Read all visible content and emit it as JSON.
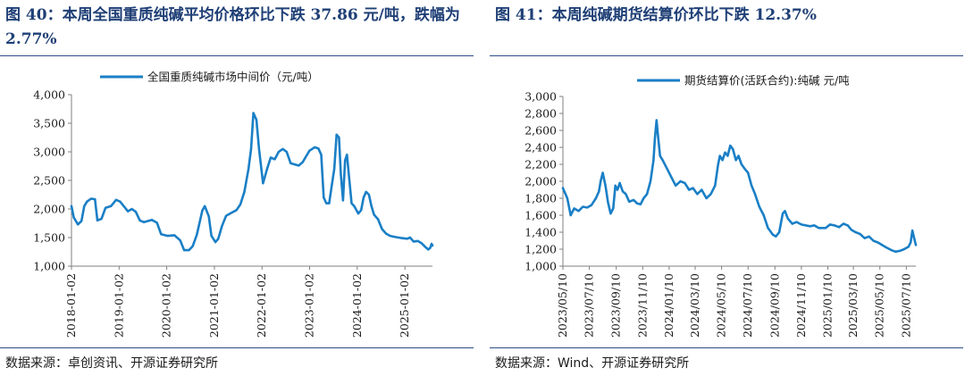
{
  "colors": {
    "series": "#1a7fc6",
    "title": "#1f3f76",
    "axis": "#7f7f7f",
    "rule": "#2b4f86"
  },
  "panels": [
    {
      "title": "图 40：本周全国重质纯碱平均价格环比下跌 37.86 元/吨，跌幅为 2.77%",
      "source": "数据来源：卓创资讯、开源证券研究所"
    },
    {
      "title": "图 41：本周纯碱期货结算价环比下跌 12.37%",
      "source": "数据来源：Wind、开源证券研究所"
    }
  ],
  "chart_data": [
    {
      "type": "line",
      "title": "",
      "xlabel": "",
      "ylabel": "",
      "legend_position": "top-center",
      "grid": false,
      "ylim": [
        1000,
        4000
      ],
      "yticks": [
        "1,000",
        "1,500",
        "2,000",
        "2,500",
        "3,000",
        "3,500",
        "4,000"
      ],
      "xlim": [
        "2018-01-02",
        "2025-08-01"
      ],
      "xticks": [
        "2018-01-02",
        "2019-01-02",
        "2020-01-02",
        "2021-01-02",
        "2022-01-02",
        "2023-01-02",
        "2024-01-02",
        "2025-01-02"
      ],
      "series": [
        {
          "name": "全国重质纯碱市场中间价（元/吨）",
          "points": [
            [
              "2018-01-02",
              2050
            ],
            [
              "2018-01-20",
              1850
            ],
            [
              "2018-02-20",
              1730
            ],
            [
              "2018-03-20",
              1790
            ],
            [
              "2018-04-10",
              2050
            ],
            [
              "2018-05-01",
              2130
            ],
            [
              "2018-06-01",
              2180
            ],
            [
              "2018-07-01",
              2170
            ],
            [
              "2018-07-20",
              1800
            ],
            [
              "2018-08-20",
              1830
            ],
            [
              "2018-09-20",
              2020
            ],
            [
              "2018-11-01",
              2050
            ],
            [
              "2018-12-10",
              2160
            ],
            [
              "2019-01-10",
              2130
            ],
            [
              "2019-02-10",
              2040
            ],
            [
              "2019-03-10",
              1960
            ],
            [
              "2019-04-10",
              2000
            ],
            [
              "2019-05-10",
              1950
            ],
            [
              "2019-06-10",
              1800
            ],
            [
              "2019-07-10",
              1770
            ],
            [
              "2019-09-10",
              1810
            ],
            [
              "2019-10-20",
              1760
            ],
            [
              "2019-11-20",
              1560
            ],
            [
              "2020-01-10",
              1530
            ],
            [
              "2020-03-01",
              1540
            ],
            [
              "2020-04-15",
              1450
            ],
            [
              "2020-05-15",
              1280
            ],
            [
              "2020-06-20",
              1280
            ],
            [
              "2020-07-20",
              1350
            ],
            [
              "2020-08-20",
              1550
            ],
            [
              "2020-10-01",
              1970
            ],
            [
              "2020-10-20",
              2050
            ],
            [
              "2020-11-20",
              1870
            ],
            [
              "2020-12-10",
              1530
            ],
            [
              "2021-01-10",
              1420
            ],
            [
              "2021-02-01",
              1480
            ],
            [
              "2021-03-01",
              1700
            ],
            [
              "2021-04-01",
              1880
            ],
            [
              "2021-05-10",
              1930
            ],
            [
              "2021-06-20",
              1980
            ],
            [
              "2021-07-20",
              2080
            ],
            [
              "2021-08-20",
              2300
            ],
            [
              "2021-09-20",
              2700
            ],
            [
              "2021-10-10",
              3050
            ],
            [
              "2021-10-28",
              3680
            ],
            [
              "2021-11-20",
              3560
            ],
            [
              "2021-12-10",
              3050
            ],
            [
              "2022-01-10",
              2450
            ],
            [
              "2022-02-10",
              2700
            ],
            [
              "2022-03-10",
              2900
            ],
            [
              "2022-04-10",
              2870
            ],
            [
              "2022-05-10",
              3000
            ],
            [
              "2022-06-10",
              3050
            ],
            [
              "2022-07-10",
              3000
            ],
            [
              "2022-08-10",
              2800
            ],
            [
              "2022-09-10",
              2780
            ],
            [
              "2022-10-10",
              2760
            ],
            [
              "2022-11-10",
              2820
            ],
            [
              "2022-12-01",
              2900
            ],
            [
              "2023-01-01",
              3020
            ],
            [
              "2023-02-10",
              3080
            ],
            [
              "2023-03-10",
              3060
            ],
            [
              "2023-04-01",
              2950
            ],
            [
              "2023-04-20",
              2200
            ],
            [
              "2023-05-10",
              2100
            ],
            [
              "2023-06-01",
              2100
            ],
            [
              "2023-06-20",
              2400
            ],
            [
              "2023-07-10",
              2700
            ],
            [
              "2023-07-28",
              3300
            ],
            [
              "2023-08-15",
              3250
            ],
            [
              "2023-08-30",
              2600
            ],
            [
              "2023-09-15",
              2150
            ],
            [
              "2023-10-01",
              2850
            ],
            [
              "2023-10-15",
              2950
            ],
            [
              "2023-11-01",
              2550
            ],
            [
              "2023-11-20",
              2100
            ],
            [
              "2023-12-10",
              2050
            ],
            [
              "2024-01-10",
              1920
            ],
            [
              "2024-02-01",
              1980
            ],
            [
              "2024-02-20",
              2200
            ],
            [
              "2024-03-10",
              2300
            ],
            [
              "2024-04-01",
              2250
            ],
            [
              "2024-04-20",
              2050
            ],
            [
              "2024-05-10",
              1900
            ],
            [
              "2024-06-10",
              1820
            ],
            [
              "2024-07-10",
              1650
            ],
            [
              "2024-08-10",
              1570
            ],
            [
              "2024-09-10",
              1530
            ],
            [
              "2024-10-20",
              1510
            ],
            [
              "2024-12-10",
              1490
            ],
            [
              "2025-01-20",
              1480
            ],
            [
              "2025-02-10",
              1500
            ],
            [
              "2025-03-10",
              1430
            ],
            [
              "2025-04-10",
              1440
            ],
            [
              "2025-05-10",
              1400
            ],
            [
              "2025-06-10",
              1330
            ],
            [
              "2025-06-30",
              1290
            ],
            [
              "2025-07-15",
              1320
            ],
            [
              "2025-07-25",
              1390
            ],
            [
              "2025-08-01",
              1360
            ]
          ]
        }
      ]
    },
    {
      "type": "line",
      "title": "",
      "xlabel": "",
      "ylabel": "",
      "legend_position": "top-center",
      "grid": false,
      "ylim": [
        1000,
        3000
      ],
      "yticks": [
        "1,000",
        "1,200",
        "1,400",
        "1,600",
        "1,800",
        "2,000",
        "2,200",
        "2,400",
        "2,600",
        "2,800",
        "3,000"
      ],
      "xlim": [
        "2023-05-10",
        "2025-08-01"
      ],
      "xticks": [
        "2023/05/10",
        "2023/07/10",
        "2023/09/10",
        "2023/11/10",
        "2024/01/10",
        "2024/03/10",
        "2024/05/10",
        "2024/07/10",
        "2024/09/10",
        "2024/11/10",
        "2025/01/10",
        "2025/03/10",
        "2025/05/10",
        "2025/07/10"
      ],
      "series": [
        {
          "name": "期货结算价(活跃合约):纯碱 元/吨",
          "points": [
            [
              "2023-05-10",
              1920
            ],
            [
              "2023-05-20",
              1800
            ],
            [
              "2023-05-28",
              1600
            ],
            [
              "2023-06-05",
              1680
            ],
            [
              "2023-06-15",
              1650
            ],
            [
              "2023-06-25",
              1700
            ],
            [
              "2023-07-05",
              1690
            ],
            [
              "2023-07-15",
              1720
            ],
            [
              "2023-07-25",
              1800
            ],
            [
              "2023-08-01",
              1880
            ],
            [
              "2023-08-05",
              2000
            ],
            [
              "2023-08-10",
              2100
            ],
            [
              "2023-08-16",
              1950
            ],
            [
              "2023-08-22",
              1750
            ],
            [
              "2023-08-28",
              1620
            ],
            [
              "2023-09-03",
              1680
            ],
            [
              "2023-09-08",
              1950
            ],
            [
              "2023-09-13",
              1900
            ],
            [
              "2023-09-18",
              1980
            ],
            [
              "2023-09-25",
              1880
            ],
            [
              "2023-10-02",
              1850
            ],
            [
              "2023-10-10",
              1760
            ],
            [
              "2023-10-20",
              1780
            ],
            [
              "2023-10-28",
              1740
            ],
            [
              "2023-11-05",
              1730
            ],
            [
              "2023-11-12",
              1800
            ],
            [
              "2023-11-20",
              1850
            ],
            [
              "2023-11-28",
              2000
            ],
            [
              "2023-12-05",
              2250
            ],
            [
              "2023-12-08",
              2500
            ],
            [
              "2023-12-12",
              2720
            ],
            [
              "2023-12-15",
              2550
            ],
            [
              "2023-12-20",
              2300
            ],
            [
              "2023-12-26",
              2250
            ],
            [
              "2024-01-05",
              2150
            ],
            [
              "2024-01-15",
              2050
            ],
            [
              "2024-01-25",
              1950
            ],
            [
              "2024-02-05",
              2000
            ],
            [
              "2024-02-15",
              1980
            ],
            [
              "2024-02-25",
              1900
            ],
            [
              "2024-03-05",
              1920
            ],
            [
              "2024-03-15",
              1850
            ],
            [
              "2024-03-25",
              1900
            ],
            [
              "2024-04-05",
              1800
            ],
            [
              "2024-04-15",
              1850
            ],
            [
              "2024-04-25",
              1950
            ],
            [
              "2024-05-02",
              2200
            ],
            [
              "2024-05-06",
              2300
            ],
            [
              "2024-05-12",
              2250
            ],
            [
              "2024-05-18",
              2340
            ],
            [
              "2024-05-24",
              2300
            ],
            [
              "2024-05-30",
              2420
            ],
            [
              "2024-06-05",
              2380
            ],
            [
              "2024-06-12",
              2250
            ],
            [
              "2024-06-18",
              2300
            ],
            [
              "2024-06-25",
              2200
            ],
            [
              "2024-07-02",
              2150
            ],
            [
              "2024-07-10",
              2100
            ],
            [
              "2024-07-18",
              1950
            ],
            [
              "2024-07-26",
              1850
            ],
            [
              "2024-08-05",
              1700
            ],
            [
              "2024-08-15",
              1600
            ],
            [
              "2024-08-25",
              1450
            ],
            [
              "2024-09-05",
              1370
            ],
            [
              "2024-09-12",
              1350
            ],
            [
              "2024-09-20",
              1400
            ],
            [
              "2024-09-28",
              1620
            ],
            [
              "2024-10-03",
              1650
            ],
            [
              "2024-10-10",
              1560
            ],
            [
              "2024-10-20",
              1500
            ],
            [
              "2024-10-30",
              1520
            ],
            [
              "2024-11-10",
              1490
            ],
            [
              "2024-11-20",
              1480
            ],
            [
              "2024-11-30",
              1470
            ],
            [
              "2024-12-10",
              1480
            ],
            [
              "2024-12-20",
              1450
            ],
            [
              "2025-01-05",
              1450
            ],
            [
              "2025-01-15",
              1490
            ],
            [
              "2025-01-25",
              1480
            ],
            [
              "2025-02-05",
              1460
            ],
            [
              "2025-02-15",
              1500
            ],
            [
              "2025-02-25",
              1480
            ],
            [
              "2025-03-05",
              1430
            ],
            [
              "2025-03-15",
              1400
            ],
            [
              "2025-03-25",
              1380
            ],
            [
              "2025-04-05",
              1330
            ],
            [
              "2025-04-15",
              1350
            ],
            [
              "2025-04-25",
              1300
            ],
            [
              "2025-05-05",
              1280
            ],
            [
              "2025-05-15",
              1250
            ],
            [
              "2025-05-25",
              1220
            ],
            [
              "2025-06-05",
              1190
            ],
            [
              "2025-06-15",
              1170
            ],
            [
              "2025-06-25",
              1180
            ],
            [
              "2025-07-05",
              1200
            ],
            [
              "2025-07-15",
              1230
            ],
            [
              "2025-07-20",
              1280
            ],
            [
              "2025-07-24",
              1420
            ],
            [
              "2025-07-28",
              1330
            ],
            [
              "2025-08-01",
              1250
            ]
          ]
        }
      ]
    }
  ]
}
